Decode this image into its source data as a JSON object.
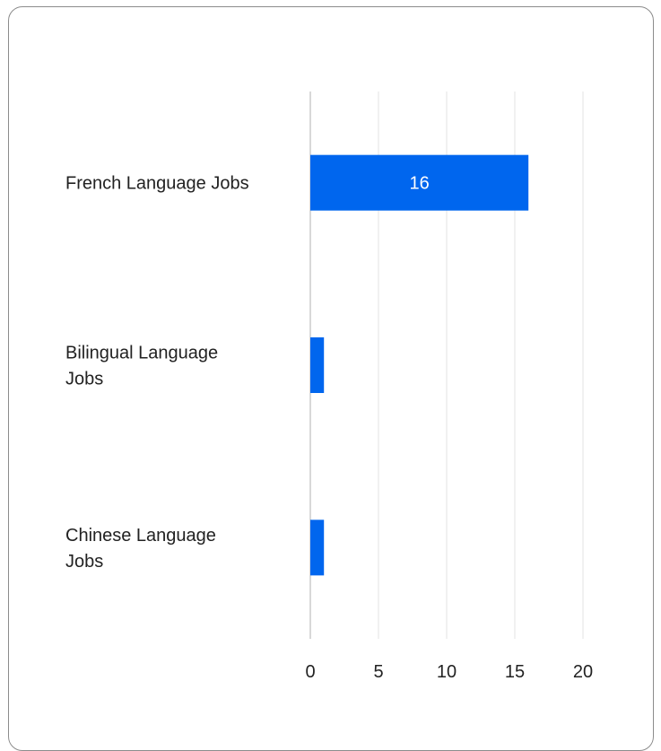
{
  "chart_data": {
    "type": "bar",
    "orientation": "horizontal",
    "categories": [
      "French Language Jobs",
      "Bilingual Language Jobs",
      "Chinese Language Jobs"
    ],
    "category_lines": [
      [
        "French Language Jobs"
      ],
      [
        "Bilingual Language",
        "Jobs"
      ],
      [
        "Chinese Language",
        "Jobs"
      ]
    ],
    "values": [
      16,
      1,
      1
    ],
    "data_labels": [
      "16",
      "",
      ""
    ],
    "xlim": [
      0,
      20
    ],
    "xticks": [
      0,
      5,
      10,
      15,
      20
    ],
    "grid": true,
    "legend": "none",
    "colors": {
      "bar": "#0066ee",
      "grid": "#e3e3e3",
      "axis": "#cccccc"
    }
  }
}
